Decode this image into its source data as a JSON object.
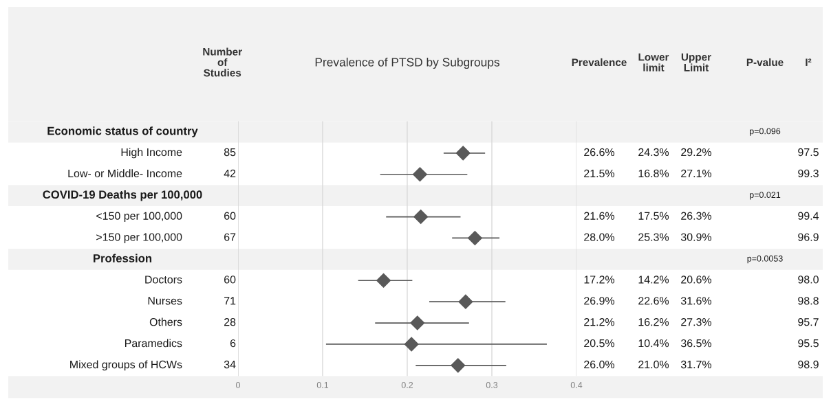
{
  "chart_data": [
    {
      "type": "scatter",
      "orientation": "horizontal",
      "title": "Prevalence of PTSD by Subgroups",
      "categories": [
        "Economic status of country",
        "High Income",
        "Low- or Middle- Income",
        "COVID-19 Deaths per 100,000",
        "<150 per 100,000",
        ">150 per 100,000",
        "Profession",
        "Doctors",
        "Nurses",
        "Others",
        "Paramedics",
        "Mixed groups of HCWs"
      ],
      "values": [
        null,
        0.266,
        0.215,
        null,
        0.216,
        0.28,
        null,
        0.172,
        0.269,
        0.212,
        0.205,
        0.26
      ],
      "errors": [
        null,
        [
          0.243,
          0.292
        ],
        [
          0.168,
          0.271
        ],
        null,
        [
          0.175,
          0.263
        ],
        [
          0.253,
          0.309
        ],
        null,
        [
          0.142,
          0.206
        ],
        [
          0.226,
          0.316
        ],
        [
          0.162,
          0.273
        ],
        [
          0.104,
          0.365
        ],
        [
          0.21,
          0.317
        ]
      ],
      "color": "#595959",
      "marker": "diamond",
      "xlim": [
        0,
        0.4
      ],
      "xticks": [
        0,
        0.1,
        0.2,
        0.3,
        0.4
      ],
      "grid": "x",
      "tick_labels": "x"
    },
    {
      "type": "other",
      "title": "Number\nof\nStudies",
      "values": [
        null,
        85,
        42,
        null,
        60,
        67,
        null,
        60,
        71,
        28,
        6,
        34
      ],
      "value_labels": [
        null,
        "85",
        "42",
        null,
        "60",
        "67",
        null,
        "60",
        "71",
        "28",
        "6",
        "34"
      ]
    },
    {
      "type": "other",
      "title": "Prevalence",
      "values": [
        null,
        26.6,
        21.5,
        null,
        21.6,
        28.0,
        null,
        17.2,
        26.9,
        21.2,
        20.5,
        26.0
      ],
      "value_labels": [
        null,
        "26.6%",
        "21.5%",
        null,
        "21.6%",
        "28.0%",
        null,
        "17.2%",
        "26.9%",
        "21.2%",
        "20.5%",
        "26.0%"
      ]
    },
    {
      "type": "other",
      "title": "Lower\nlimit",
      "values": [
        null,
        24.3,
        16.8,
        null,
        17.5,
        25.3,
        null,
        14.2,
        22.6,
        16.2,
        10.4,
        21.0
      ],
      "value_labels": [
        null,
        "24.3%",
        "16.8%",
        null,
        "17.5%",
        "25.3%",
        null,
        "14.2%",
        "22.6%",
        "16.2%",
        "10.4%",
        "21.0%"
      ]
    },
    {
      "type": "other",
      "title": "Upper\nLimit",
      "values": [
        null,
        29.2,
        27.1,
        null,
        26.3,
        30.9,
        null,
        20.6,
        31.6,
        27.3,
        36.5,
        31.7
      ],
      "value_labels": [
        null,
        "29.2%",
        "27.1%",
        null,
        "26.3%",
        "30.9%",
        null,
        "20.6%",
        "31.6%",
        "27.3%",
        "36.5%",
        "31.7%"
      ]
    },
    {
      "type": "other",
      "title": "P-value",
      "values": [
        0.096,
        null,
        null,
        0.021,
        null,
        null,
        0.0053,
        null,
        null,
        null,
        null,
        null
      ],
      "value_labels": [
        "p=0.096",
        null,
        null,
        "p=0.021",
        null,
        null,
        "p=0.0053",
        null,
        null,
        null,
        null,
        null
      ]
    },
    {
      "type": "other",
      "title": "I²",
      "values": [
        null,
        97.5,
        99.3,
        null,
        99.4,
        96.9,
        null,
        98.0,
        98.8,
        95.7,
        95.5,
        98.9
      ],
      "value_labels": [
        null,
        "97.5",
        "99.3",
        null,
        "99.4",
        "96.9",
        null,
        "98.0",
        "98.8",
        "95.7",
        "95.5",
        "98.9"
      ]
    }
  ]
}
